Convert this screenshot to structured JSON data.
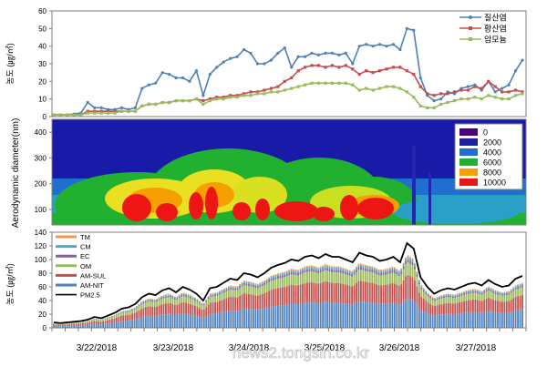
{
  "chart_data": [
    {
      "type": "line",
      "ylabel": "농도 (㎍/㎥)",
      "ylim": [
        0,
        60
      ],
      "yticks": [
        0,
        10,
        20,
        30,
        40,
        50,
        60
      ],
      "legend_position": "top-right",
      "series": [
        {
          "name": "질산염",
          "color": "#4f81bd",
          "values": [
            1,
            1,
            1,
            1.5,
            2,
            8,
            5,
            5,
            4,
            4,
            5,
            4,
            5,
            16,
            18,
            19,
            25,
            24,
            22,
            22,
            20,
            26,
            12,
            24,
            28,
            31,
            33,
            34,
            38,
            36,
            30,
            30,
            32,
            36,
            39,
            28,
            34,
            34,
            36,
            35,
            36,
            36,
            35,
            36,
            30,
            40,
            41,
            40,
            41,
            40,
            41,
            38,
            50,
            49,
            22,
            12,
            9,
            10,
            14,
            13,
            16,
            17,
            18,
            15,
            20,
            14,
            16,
            18,
            26,
            32
          ]
        },
        {
          "name": "황산염",
          "color": "#c0504d",
          "values": [
            1,
            1,
            1,
            1,
            1,
            3,
            3,
            3,
            3,
            3,
            3,
            3,
            3,
            6,
            7,
            7,
            8,
            8,
            9,
            9,
            9,
            10,
            9,
            10,
            11,
            11,
            12,
            12,
            13,
            14,
            14,
            15,
            16,
            17,
            20,
            22,
            26,
            28,
            29,
            29,
            28,
            29,
            28,
            29,
            27,
            24,
            26,
            25,
            26,
            27,
            28,
            28,
            26,
            24,
            17,
            13,
            12,
            13,
            13,
            14,
            15,
            15,
            17,
            16,
            20,
            17,
            14,
            14,
            15,
            14
          ]
        },
        {
          "name": "암모늄",
          "color": "#9bbb59",
          "values": [
            1,
            1,
            1,
            1,
            1,
            2,
            2,
            2,
            2,
            2,
            3,
            3,
            3,
            6,
            7,
            7,
            8,
            8,
            9,
            9,
            9,
            10,
            7,
            9,
            10,
            10,
            11,
            11,
            12,
            12,
            13,
            13,
            14,
            14,
            15,
            16,
            17,
            18,
            19,
            19,
            19,
            19,
            19,
            19,
            18,
            15,
            16,
            15,
            16,
            17,
            17,
            16,
            14,
            11,
            6,
            5,
            5,
            7,
            8,
            9,
            10,
            10,
            11,
            10,
            12,
            11,
            10,
            10,
            12,
            13
          ]
        }
      ]
    },
    {
      "type": "heatmap",
      "ylabel": "Aerodynamic diameter(nm)",
      "ylim": [
        40,
        450
      ],
      "yticks": [
        100,
        200,
        300,
        400
      ],
      "legend_position": "top-right",
      "color_scale": [
        {
          "label": "0",
          "color": "#4b0082"
        },
        {
          "label": "2000",
          "color": "#1e1ea0"
        },
        {
          "label": "4000",
          "color": "#1f6fd0"
        },
        {
          "label": "6000",
          "color": "#22b030"
        },
        {
          "label": "8000",
          "color": "#f5a000"
        },
        {
          "label": "10000",
          "color": "#ee1515"
        }
      ]
    },
    {
      "type": "bar",
      "stacked": true,
      "ylabel": "농도 (㎍/㎥)",
      "ylim": [
        0,
        140
      ],
      "yticks": [
        0,
        20,
        40,
        60,
        80,
        100,
        120,
        140
      ],
      "xlabels": [
        "3/22/2018",
        "3/23/2018",
        "3/24/2018",
        "3/25/2018",
        "3/26/2018",
        "3/27/2018"
      ],
      "legend_position": "top-left",
      "series": [
        {
          "name": "TM",
          "color": "#f79646"
        },
        {
          "name": "CM",
          "color": "#4bacc6"
        },
        {
          "name": "EC",
          "color": "#8064a2"
        },
        {
          "name": "OM",
          "color": "#9bbb59"
        },
        {
          "name": "AM-SUL",
          "color": "#c0504d"
        },
        {
          "name": "AM-NIT",
          "color": "#4f81bd"
        },
        {
          "name": "PM2.5",
          "color": "#000000"
        }
      ],
      "pm25": [
        8,
        7,
        8,
        9,
        10,
        12,
        16,
        14,
        18,
        22,
        28,
        30,
        35,
        45,
        50,
        48,
        55,
        58,
        52,
        60,
        56,
        50,
        40,
        58,
        60,
        66,
        72,
        70,
        80,
        78,
        74,
        80,
        88,
        92,
        95,
        100,
        98,
        104,
        106,
        102,
        108,
        104,
        104,
        100,
        96,
        110,
        106,
        104,
        98,
        100,
        104,
        96,
        124,
        116,
        74,
        60,
        50,
        55,
        58,
        56,
        60,
        64,
        66,
        62,
        70,
        64,
        60,
        62,
        72,
        76
      ]
    }
  ],
  "watermark": "news2.tongsin.co.kr"
}
